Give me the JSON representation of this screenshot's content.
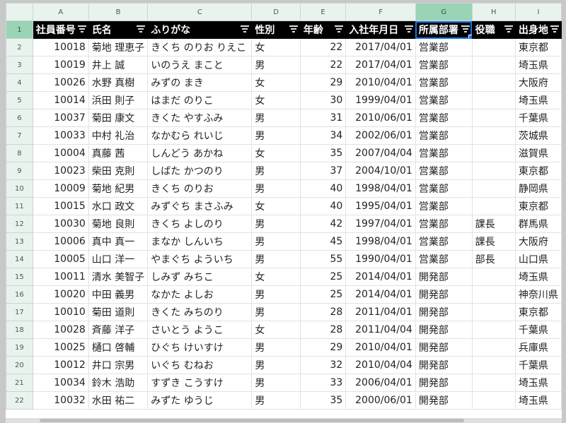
{
  "columns": [
    "A",
    "B",
    "C",
    "D",
    "E",
    "F",
    "G",
    "H",
    "I"
  ],
  "selected_column": "G",
  "header_row": [
    "社員番号",
    "氏名",
    "ふりがな",
    "性別",
    "年齢",
    "入社年月日",
    "所属部署",
    "役職",
    "出身地"
  ],
  "filter_icon": "filter-icon",
  "rows": [
    {
      "n": "2",
      "v": [
        "10018",
        "菊地 理恵子",
        "きくち のりお りえこ",
        "女",
        "22",
        "2017/04/01",
        "営業部",
        "",
        "東京都"
      ]
    },
    {
      "n": "3",
      "v": [
        "10019",
        "井上 誠",
        "いのうえ まこと",
        "男",
        "22",
        "2017/04/01",
        "営業部",
        "",
        "埼玉県"
      ]
    },
    {
      "n": "4",
      "v": [
        "10026",
        "水野 真樹",
        "みずの まき",
        "女",
        "29",
        "2010/04/01",
        "営業部",
        "",
        "大阪府"
      ]
    },
    {
      "n": "5",
      "v": [
        "10014",
        "浜田 則子",
        "はまだ のりこ",
        "女",
        "30",
        "1999/04/01",
        "営業部",
        "",
        "埼玉県"
      ]
    },
    {
      "n": "6",
      "v": [
        "10037",
        "菊田 康文",
        "きくた やすふみ",
        "男",
        "31",
        "2010/06/01",
        "営業部",
        "",
        "千葉県"
      ]
    },
    {
      "n": "7",
      "v": [
        "10033",
        "中村 礼治",
        "なかむら れいじ",
        "男",
        "34",
        "2002/06/01",
        "営業部",
        "",
        "茨城県"
      ]
    },
    {
      "n": "8",
      "v": [
        "10004",
        "真藤 茜",
        "しんどう あかね",
        "女",
        "35",
        "2007/04/04",
        "営業部",
        "",
        "滋賀県"
      ]
    },
    {
      "n": "9",
      "v": [
        "10023",
        "柴田 克則",
        "しばた かつのり",
        "男",
        "37",
        "2004/10/01",
        "営業部",
        "",
        "東京都"
      ]
    },
    {
      "n": "10",
      "v": [
        "10009",
        "菊地 紀男",
        "きくち のりお",
        "男",
        "40",
        "1998/04/01",
        "営業部",
        "",
        "静岡県"
      ]
    },
    {
      "n": "11",
      "v": [
        "10015",
        "水口 政文",
        "みずぐち まさふみ",
        "女",
        "40",
        "1995/04/01",
        "営業部",
        "",
        "東京都"
      ]
    },
    {
      "n": "12",
      "v": [
        "10030",
        "菊地 良則",
        "きくち よしのり",
        "男",
        "42",
        "1997/04/01",
        "営業部",
        "課長",
        "群馬県"
      ]
    },
    {
      "n": "13",
      "v": [
        "10006",
        "真中 真一",
        "まなか しんいち",
        "男",
        "45",
        "1998/04/01",
        "営業部",
        "課長",
        "大阪府"
      ]
    },
    {
      "n": "14",
      "v": [
        "10005",
        "山口 洋一",
        "やまぐち よういち",
        "男",
        "55",
        "1990/04/01",
        "営業部",
        "部長",
        "山口県"
      ]
    },
    {
      "n": "15",
      "v": [
        "10011",
        "清水 美智子",
        "しみず みちこ",
        "女",
        "25",
        "2014/04/01",
        "開発部",
        "",
        "埼玉県"
      ]
    },
    {
      "n": "16",
      "v": [
        "10020",
        "中田 義男",
        "なかた よしお",
        "男",
        "25",
        "2014/04/01",
        "開発部",
        "",
        "神奈川県"
      ]
    },
    {
      "n": "17",
      "v": [
        "10010",
        "菊田 道則",
        "きくた みちのり",
        "男",
        "28",
        "2011/04/01",
        "開発部",
        "",
        "東京都"
      ]
    },
    {
      "n": "18",
      "v": [
        "10028",
        "斉藤 洋子",
        "さいとう ようこ",
        "女",
        "28",
        "2011/04/04",
        "開発部",
        "",
        "千葉県"
      ]
    },
    {
      "n": "19",
      "v": [
        "10025",
        "樋口 啓輔",
        "ひぐち けいすけ",
        "男",
        "29",
        "2010/04/01",
        "開発部",
        "",
        "兵庫県"
      ]
    },
    {
      "n": "20",
      "v": [
        "10012",
        "井口 宗男",
        "いぐち むねお",
        "男",
        "32",
        "2010/04/04",
        "開発部",
        "",
        "千葉県"
      ]
    },
    {
      "n": "21",
      "v": [
        "10034",
        "鈴木 浩助",
        "すずき こうすけ",
        "男",
        "33",
        "2006/04/01",
        "開発部",
        "",
        "埼玉県"
      ]
    },
    {
      "n": "22",
      "v": [
        "10032",
        "水田 祐二",
        "みずた ゆうじ",
        "男",
        "35",
        "2000/06/01",
        "開発部",
        "",
        "埼玉県"
      ]
    }
  ],
  "row1_label": "1",
  "colors": {
    "header_bg": "#000000",
    "colhead_bg": "#e8f3ee",
    "selected_colhead": "#9ad3b5",
    "selection": "#1a73e8"
  }
}
